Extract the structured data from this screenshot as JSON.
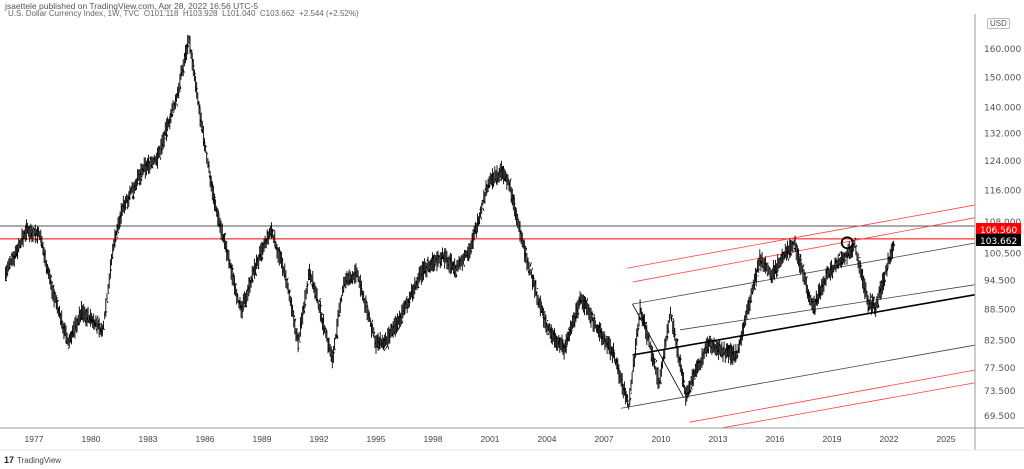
{
  "header": {
    "publisher": "jsaettele published on TradingView.com, Apr 28, 2022 16:56 UTC-5",
    "symbol": "U.S. Dollar Currency Index, 1W, TVC",
    "open": "O101.118",
    "high": "H103.928",
    "low": "L101.040",
    "close": "C103.662",
    "change": "+2.544 (+2.52%)"
  },
  "currency_button": "USD",
  "footer": {
    "logo_text": "TradingView",
    "logo_mark": "17"
  },
  "chart_data": {
    "type": "line",
    "style": "candlestick-like weekly price",
    "y_scale": "log",
    "ylim": [
      67,
      175
    ],
    "xlim": [
      1975.4,
      2028.3
    ],
    "grid": false,
    "y_ticks": [
      "160.000",
      "150.000",
      "140.000",
      "132.000",
      "124.000",
      "116.000",
      "108.000",
      "100.500",
      "94.500",
      "88.500",
      "82.500",
      "77.500",
      "73.500",
      "69.500"
    ],
    "x_ticks": [
      "1977",
      "1980",
      "1983",
      "1986",
      "1989",
      "1992",
      "1995",
      "1998",
      "2001",
      "2004",
      "2007",
      "2010",
      "2013",
      "2016",
      "2019",
      "2022",
      "2025"
    ],
    "price_labels": [
      {
        "value": "106.560",
        "color": "#ff0000"
      },
      {
        "value": "103.662",
        "color": "#000000"
      }
    ],
    "series": [
      {
        "color": "#000000",
        "points": [
          [
            1975.5,
            96
          ],
          [
            1976.6,
            106
          ],
          [
            1977.3,
            105
          ],
          [
            1978.0,
            92
          ],
          [
            1978.8,
            82
          ],
          [
            1979.5,
            88
          ],
          [
            1980.2,
            86
          ],
          [
            1980.6,
            84
          ],
          [
            1981.2,
            103
          ],
          [
            1981.7,
            112
          ],
          [
            1982.8,
            122
          ],
          [
            1983.5,
            125
          ],
          [
            1984.5,
            143
          ],
          [
            1985.15,
            164
          ],
          [
            1985.8,
            135
          ],
          [
            1986.5,
            113
          ],
          [
            1987.2,
            100
          ],
          [
            1987.9,
            88
          ],
          [
            1988.6,
            97
          ],
          [
            1989.5,
            106
          ],
          [
            1990.2,
            96
          ],
          [
            1990.9,
            82
          ],
          [
            1991.5,
            97
          ],
          [
            1992.7,
            79
          ],
          [
            1993.3,
            94
          ],
          [
            1994.0,
            96
          ],
          [
            1995.0,
            82
          ],
          [
            1995.5,
            82
          ],
          [
            1996.3,
            87
          ],
          [
            1997.5,
            97
          ],
          [
            1998.5,
            100
          ],
          [
            1999.2,
            97
          ],
          [
            2000.0,
            102
          ],
          [
            2000.9,
            118
          ],
          [
            2001.6,
            121
          ],
          [
            2002.0,
            118
          ],
          [
            2002.4,
            109
          ],
          [
            2003.0,
            98
          ],
          [
            2004.0,
            85
          ],
          [
            2004.9,
            81
          ],
          [
            2005.8,
            91
          ],
          [
            2006.6,
            85
          ],
          [
            2007.5,
            80
          ],
          [
            2008.3,
            71
          ],
          [
            2008.9,
            89
          ],
          [
            2009.9,
            75
          ],
          [
            2010.5,
            88
          ],
          [
            2011.3,
            73
          ],
          [
            2012.5,
            82
          ],
          [
            2013.5,
            80
          ],
          [
            2014.0,
            80
          ],
          [
            2015.2,
            99
          ],
          [
            2015.8,
            96
          ],
          [
            2017.0,
            103
          ],
          [
            2018.0,
            89
          ],
          [
            2018.8,
            96
          ],
          [
            2020.2,
            102.5
          ],
          [
            2020.9,
            90
          ],
          [
            2021.3,
            89
          ],
          [
            2022.3,
            103.662
          ]
        ]
      }
    ],
    "annotations": {
      "horizontal_lines": [
        {
          "price": 107.0,
          "color": "#555555"
        },
        {
          "price": 103.9,
          "color": "#ff0000"
        }
      ],
      "trend_lines": [
        {
          "from": [
            2008.2,
            97.2
          ],
          "to": [
            2026.5,
            112.2
          ],
          "color": "#ff4040"
        },
        {
          "from": [
            2008.5,
            94.2
          ],
          "to": [
            2026.5,
            109.0
          ],
          "color": "#ff4040"
        },
        {
          "from": [
            2008.5,
            89.6
          ],
          "to": [
            2026.5,
            102.9
          ],
          "color": "#444444"
        },
        {
          "from": [
            2008.5,
            79.8
          ],
          "to": [
            2026.5,
            91.5
          ],
          "color": "#000000",
          "bold": true
        },
        {
          "from": [
            2011.0,
            84.5
          ],
          "to": [
            2026.5,
            93.6
          ],
          "color": "#444444"
        },
        {
          "from": [
            2007.9,
            70.7
          ],
          "to": [
            2026.5,
            81.6
          ],
          "color": "#444444"
        },
        {
          "from": [
            2011.5,
            68.5
          ],
          "to": [
            2026.5,
            77.1
          ],
          "color": "#ff4040"
        },
        {
          "from": [
            2012.6,
            67.3
          ],
          "to": [
            2026.5,
            74.9
          ],
          "color": "#ff4040"
        },
        {
          "from": [
            2008.5,
            89.6
          ],
          "to": [
            2011.2,
            72.4
          ],
          "color": "#000000"
        }
      ],
      "circle": {
        "at": [
          2019.8,
          103
        ],
        "color": "#000000"
      }
    }
  }
}
